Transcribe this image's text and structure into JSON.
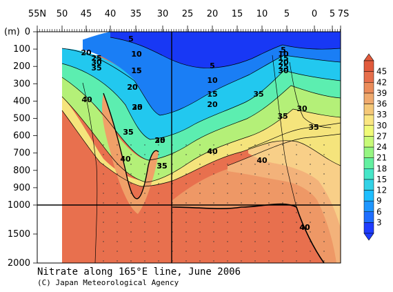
{
  "chart_data": {
    "type": "heatmap",
    "title": "Nitrate along 165°E line, June 2006",
    "credit": "(C) Japan Meteorological Agency",
    "ylabel": "(m)",
    "x_ticks": [
      "55N",
      "50",
      "45",
      "40",
      "35",
      "30",
      "25",
      "20",
      "15",
      "10",
      "5",
      "0",
      "5",
      "7S"
    ],
    "y_ticks_upper": [
      "0",
      "100",
      "200",
      "300",
      "400",
      "500",
      "600",
      "700",
      "800",
      "900",
      "1000"
    ],
    "y_ticks_lower": [
      "1500",
      "2000"
    ],
    "colorbar": {
      "ticks": [
        "3",
        "6",
        "9",
        "12",
        "15",
        "18",
        "21",
        "24",
        "27",
        "30",
        "33",
        "36",
        "39",
        "42",
        "45"
      ],
      "colors": [
        "#1e3cff",
        "#1e6eff",
        "#1e96ff",
        "#1ebeff",
        "#32d2e6",
        "#46e6c8",
        "#64f0a0",
        "#96f582",
        "#c8fa78",
        "#f0fa78",
        "#fae682",
        "#f5c878",
        "#f0aa6e",
        "#eb8c5a",
        "#e66e4b",
        "#e15a3c"
      ]
    },
    "contour_labels": [
      {
        "text": "5"
      },
      {
        "text": "10"
      },
      {
        "text": "15"
      },
      {
        "text": "20"
      },
      {
        "text": "25"
      },
      {
        "text": "30"
      },
      {
        "text": "35"
      },
      {
        "text": "40"
      },
      {
        "text": "20"
      },
      {
        "text": "25"
      },
      {
        "text": "30"
      },
      {
        "text": "35"
      },
      {
        "text": "40"
      },
      {
        "text": "5"
      },
      {
        "text": "10"
      },
      {
        "text": "15"
      },
      {
        "text": "20"
      },
      {
        "text": "35"
      },
      {
        "text": "40"
      },
      {
        "text": "40"
      },
      {
        "text": "35"
      },
      {
        "text": "30"
      },
      {
        "text": "35"
      },
      {
        "text": "40"
      },
      {
        "text": "5"
      },
      {
        "text": "10"
      },
      {
        "text": "15"
      },
      {
        "text": "20"
      },
      {
        "text": "25"
      },
      {
        "text": "30"
      },
      {
        "text": "35"
      },
      {
        "text": "40"
      },
      {
        "text": "35"
      },
      {
        "text": "10"
      },
      {
        "text": "15"
      },
      {
        "text": "20"
      },
      {
        "text": "25"
      },
      {
        "text": "30"
      },
      {
        "text": "35"
      },
      {
        "text": "40"
      }
    ]
  }
}
